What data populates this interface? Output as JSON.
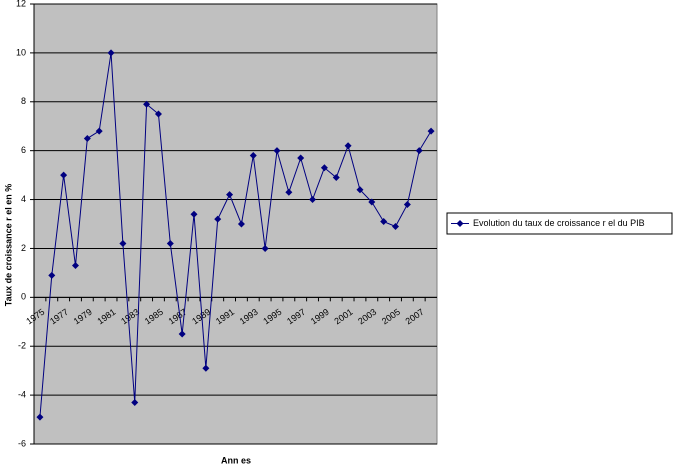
{
  "chart_data": {
    "type": "line",
    "y_label": "Taux de croissance r el en %",
    "x_label": "Ann  es",
    "categories": [
      "1975",
      null,
      "1977",
      null,
      "1979",
      null,
      "1981",
      null,
      "1983",
      null,
      "1985",
      null,
      "1987",
      null,
      "1989",
      null,
      "1991",
      null,
      "1993",
      null,
      "1995",
      null,
      "1997",
      null,
      "1999",
      null,
      "2001",
      null,
      "2003",
      null,
      "2005",
      null,
      "2007",
      null
    ],
    "series": [
      {
        "name": "Evolution du taux de croissance r  el du PIB",
        "color": "#000080",
        "values": [
          -4.9,
          0.9,
          5.0,
          1.3,
          6.5,
          6.8,
          10.0,
          2.2,
          -4.3,
          7.9,
          7.5,
          2.2,
          -1.5,
          3.4,
          -2.9,
          3.2,
          4.2,
          3.0,
          5.8,
          2.0,
          6.0,
          4.3,
          5.7,
          4.0,
          5.3,
          4.9,
          6.2,
          4.4,
          3.9,
          3.1,
          2.9,
          3.8,
          6.0,
          6.8
        ]
      }
    ],
    "ylim": [
      -6,
      12
    ],
    "yticks": [
      -6,
      -4,
      -2,
      0,
      2,
      4,
      6,
      8,
      10,
      12
    ],
    "grid": true,
    "plot_background": "#c0c0c0",
    "legend": "right"
  }
}
